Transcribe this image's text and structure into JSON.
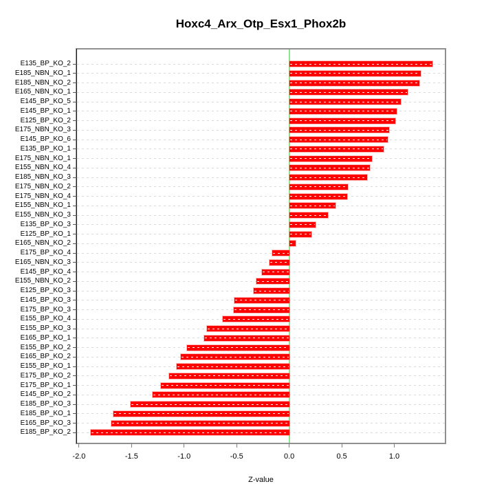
{
  "chart_data": {
    "type": "bar",
    "orientation": "horizontal",
    "title": "Hoxc4_Arx_Otp_Esx1_Phox2b",
    "xlabel": "Z-value",
    "categories": [
      "E135_BP_KO_2",
      "E185_NBN_KO_1",
      "E185_NBN_KO_2",
      "E165_NBN_KO_1",
      "E145_BP_KO_5",
      "E145_BP_KO_1",
      "E125_BP_KO_2",
      "E175_NBN_KO_3",
      "E145_BP_KO_6",
      "E135_BP_KO_1",
      "E175_NBN_KO_1",
      "E155_NBN_KO_4",
      "E185_NBN_KO_3",
      "E175_NBN_KO_2",
      "E175_NBN_KO_4",
      "E155_NBN_KO_1",
      "E155_NBN_KO_3",
      "E135_BP_KO_3",
      "E125_BP_KO_1",
      "E165_NBN_KO_2",
      "E175_BP_KO_4",
      "E165_NBN_KO_3",
      "E145_BP_KO_4",
      "E155_NBN_KO_2",
      "E125_BP_KO_3",
      "E145_BP_KO_3",
      "E175_BP_KO_3",
      "E155_BP_KO_4",
      "E155_BP_KO_3",
      "E165_BP_KO_1",
      "E155_BP_KO_2",
      "E165_BP_KO_2",
      "E155_BP_KO_1",
      "E175_BP_KO_2",
      "E175_BP_KO_1",
      "E145_BP_KO_2",
      "E185_BP_KO_3",
      "E185_BP_KO_1",
      "E165_BP_KO_3",
      "E185_BP_KO_2"
    ],
    "values": [
      1.36,
      1.25,
      1.24,
      1.13,
      1.06,
      1.02,
      1.01,
      0.95,
      0.94,
      0.9,
      0.79,
      0.77,
      0.74,
      0.56,
      0.55,
      0.44,
      0.37,
      0.25,
      0.21,
      0.06,
      -0.16,
      -0.19,
      -0.26,
      -0.31,
      -0.34,
      -0.52,
      -0.53,
      -0.63,
      -0.78,
      -0.81,
      -0.97,
      -1.03,
      -1.07,
      -1.14,
      -1.22,
      -1.3,
      -1.51,
      -1.67,
      -1.69,
      -1.89
    ],
    "x_tick_values": [
      -2.0,
      -1.5,
      -1.0,
      -0.5,
      0.0,
      0.5,
      1.0
    ],
    "x_tick_labels": [
      "-2.0",
      "-1.5",
      "-1.0",
      "-0.5",
      "0.0",
      "0.5",
      "1.0"
    ],
    "xlim": [
      -2.019,
      1.4805
    ],
    "zero_line_value": 0.0,
    "bar_color": "#FE0000",
    "zero_line_color": "#8BE88B",
    "grid": true,
    "grid_style": "dashed",
    "grid_color": "#D9D9D9",
    "box_color": "#8F8F8F",
    "background": "#FFFFFF",
    "legend": "none"
  }
}
